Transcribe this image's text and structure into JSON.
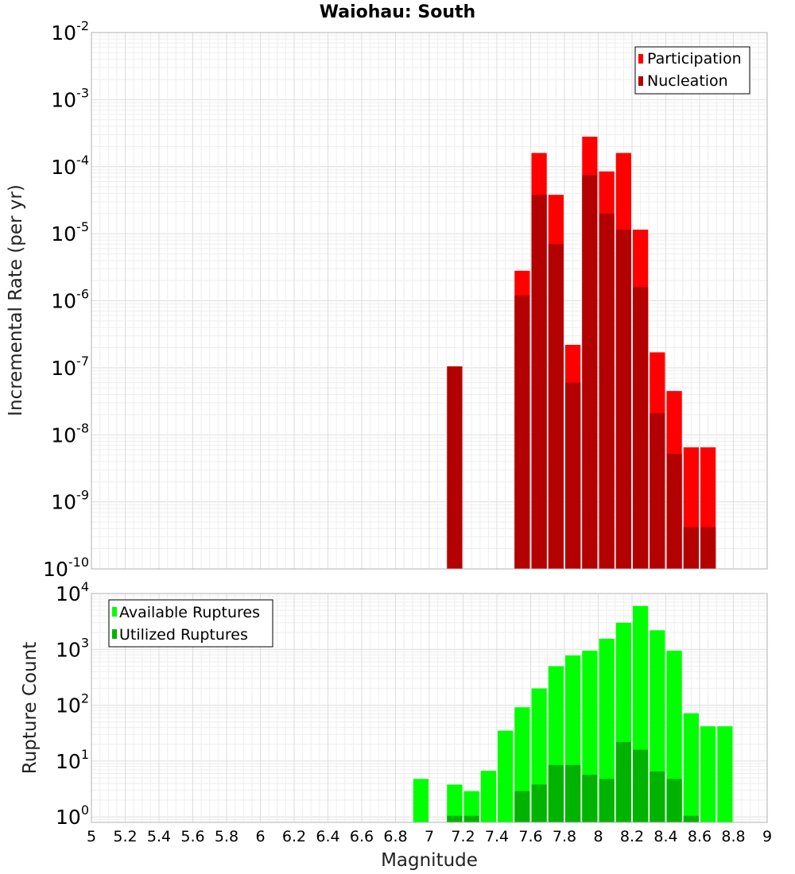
{
  "chart_data": [
    {
      "type": "bar",
      "title": "Waiohau: South",
      "ylabel": "Incremental Rate (per yr)",
      "xlabel": "",
      "yscale": "log",
      "ylim": [
        1e-10,
        0.01
      ],
      "y_tick_exponents": [
        -10,
        -9,
        -8,
        -7,
        -6,
        -5,
        -4,
        -3,
        -2
      ],
      "xlim": [
        5,
        9
      ],
      "grid": true,
      "legend_position": "top-right",
      "bar_width": 0.1,
      "series": [
        {
          "name": "Participation",
          "color": "#ff0000",
          "x": [
            7.6,
            7.7,
            7.8,
            7.9,
            8.0,
            8.1,
            8.2,
            8.3,
            8.4,
            8.5,
            8.6,
            8.7
          ],
          "values": [
            2.8e-06,
            0.00016,
            3.8e-05,
            2.2e-07,
            0.00028,
            8.5e-05,
            0.00016,
            1.15e-05,
            1.7e-07,
            4.5e-08,
            6.5e-09,
            6.5e-09
          ]
        },
        {
          "name": "Nucleation",
          "color": "#b30000",
          "x": [
            7.2,
            7.6,
            7.7,
            7.8,
            7.9,
            8.0,
            8.1,
            8.2,
            8.3,
            8.4,
            8.5,
            8.6,
            8.7
          ],
          "values": [
            1.05e-07,
            1.2e-06,
            3.8e-05,
            7e-06,
            6e-08,
            7.5e-05,
            2e-05,
            1.15e-05,
            1.6e-06,
            2.1e-08,
            5.2e-09,
            4.2e-10,
            4.2e-10
          ]
        }
      ]
    },
    {
      "type": "bar",
      "title": "",
      "ylabel": "Rupture Count",
      "xlabel": "Magnitude",
      "yscale": "log",
      "ylim": [
        0.8,
        10000
      ],
      "y_tick_exponents": [
        0,
        1,
        2,
        3,
        4
      ],
      "xlim": [
        5,
        9
      ],
      "x_ticks": [
        "5",
        "5.2",
        "5.4",
        "5.6",
        "5.8",
        "6",
        "6.2",
        "6.4",
        "6.6",
        "6.8",
        "7",
        "7.2",
        "7.4",
        "7.6",
        "7.8",
        "8",
        "8.2",
        "8.4",
        "8.6",
        "8.8",
        "9"
      ],
      "grid": true,
      "legend_position": "top-left",
      "bar_width": 0.1,
      "series": [
        {
          "name": "Available Ruptures",
          "color": "#00ff00",
          "x": [
            7.0,
            7.2,
            7.3,
            7.4,
            7.5,
            7.6,
            7.7,
            7.8,
            7.9,
            8.0,
            8.1,
            8.2,
            8.3,
            8.4,
            8.5,
            8.6,
            8.7,
            8.8
          ],
          "values": [
            4.8,
            3.8,
            2.9,
            6.7,
            35,
            92,
            200,
            500,
            780,
            950,
            1550,
            3000,
            6000,
            2200,
            950,
            72,
            42,
            42
          ]
        },
        {
          "name": "Utilized Ruptures",
          "color": "#00b300",
          "x": [
            7.2,
            7.3,
            7.6,
            7.7,
            7.8,
            7.9,
            8.0,
            8.1,
            8.2,
            8.3,
            8.4,
            8.5,
            8.6
          ],
          "values": [
            1.05,
            1.05,
            2.9,
            3.8,
            8.5,
            8.5,
            5.7,
            4.8,
            22,
            16,
            6.5,
            4.8,
            1.05
          ]
        }
      ]
    }
  ]
}
